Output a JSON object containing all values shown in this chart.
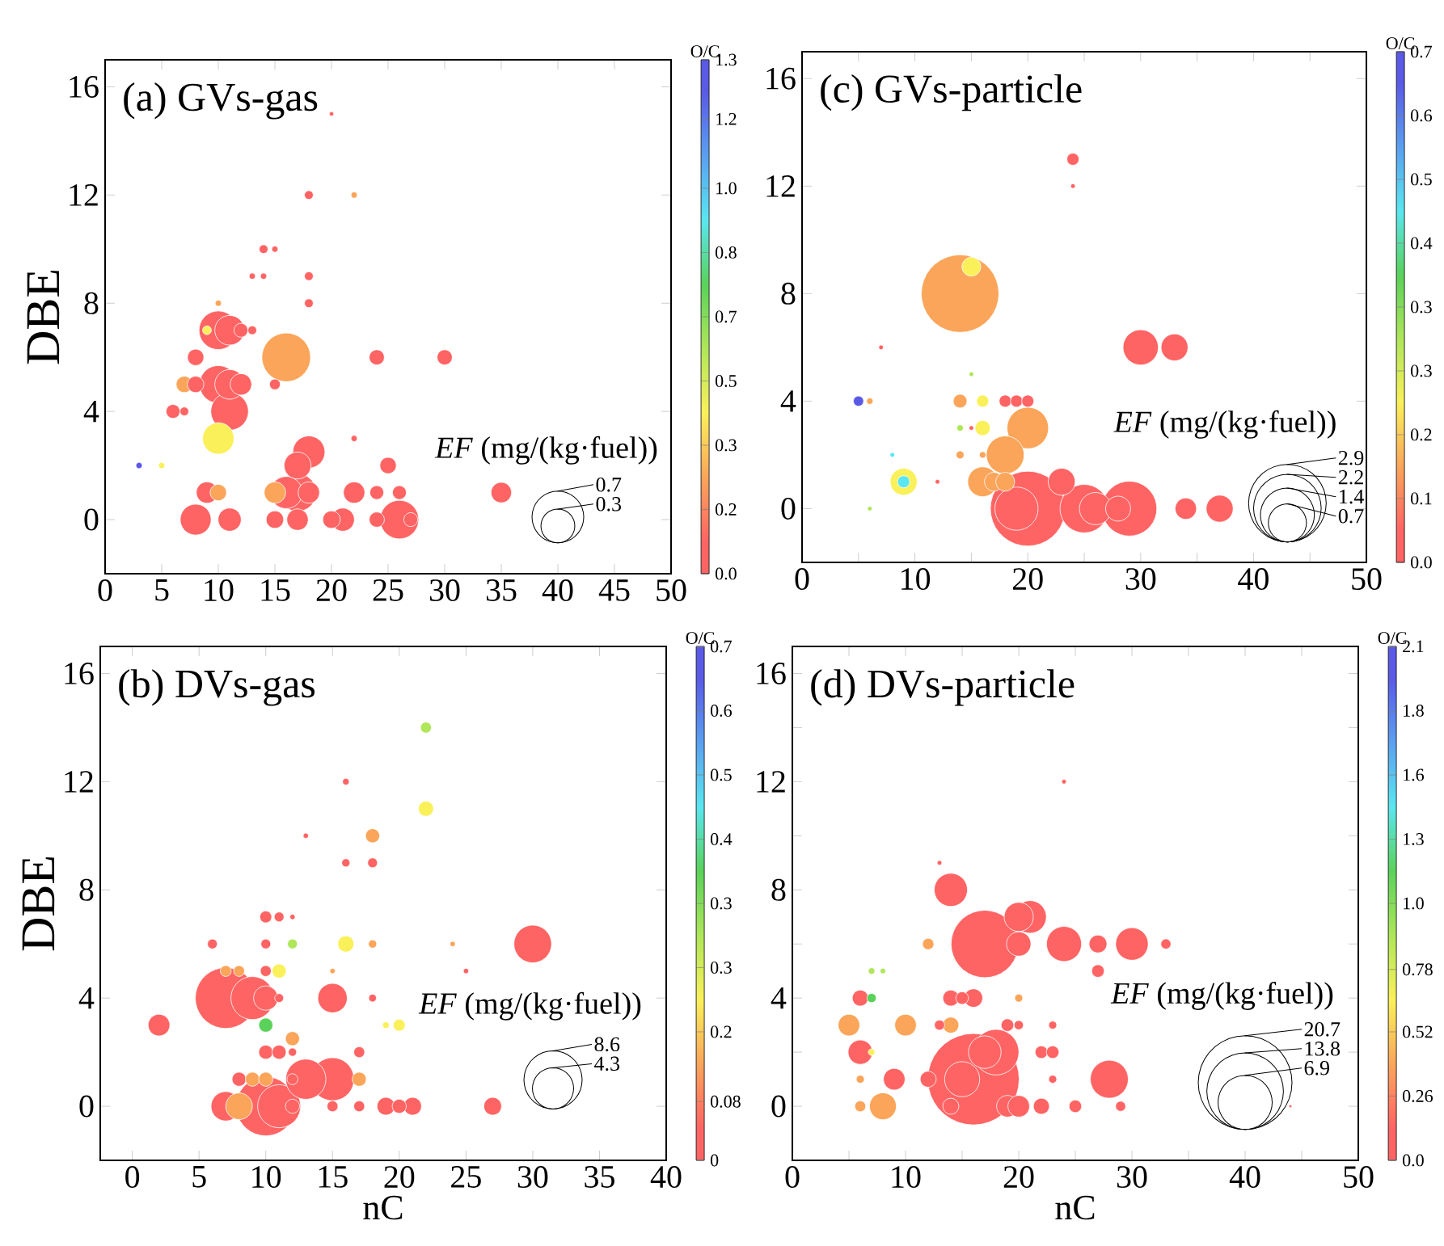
{
  "chart_data": [
    {
      "type": "bubble",
      "title": "(a) GVs-gas",
      "ylabel": "DBE",
      "legend_title": "*EF* (mg/(kg·fuel))",
      "clabel": "O/C",
      "x": [
        10,
        11,
        12,
        13,
        9,
        16,
        8,
        24,
        30,
        10,
        11,
        12,
        7,
        8,
        15,
        11,
        6,
        7,
        10,
        18,
        17,
        25,
        3,
        5,
        9,
        10,
        15,
        16,
        17,
        18,
        22,
        24,
        26,
        35,
        8,
        11,
        15,
        17,
        20,
        21,
        24,
        26,
        27,
        18,
        22,
        18,
        14,
        15,
        18,
        13,
        14,
        20,
        22,
        10
      ],
      "values": [
        7,
        7,
        7,
        7,
        7,
        6,
        6,
        6,
        6,
        5,
        5,
        5,
        5,
        5,
        5,
        4,
        4,
        4,
        3,
        2.5,
        2,
        2,
        2,
        2,
        1,
        1,
        1,
        1,
        1,
        1,
        1,
        1,
        1,
        1,
        0,
        0,
        0,
        0,
        0,
        0,
        0,
        0,
        0,
        12,
        12,
        9,
        10,
        10,
        8,
        9,
        9,
        15,
        3,
        8
      ],
      "sizes": [
        0.39,
        0.23,
        0.05,
        0.02,
        0.02,
        0.62,
        0.07,
        0.06,
        0.06,
        0.37,
        0.23,
        0.12,
        0.07,
        0.07,
        0.03,
        0.37,
        0.05,
        0.02,
        0.26,
        0.27,
        0.19,
        0.07,
        0.01,
        0.01,
        0.12,
        0.07,
        0.12,
        0.27,
        0.37,
        0.12,
        0.12,
        0.05,
        0.05,
        0.11,
        0.25,
        0.14,
        0.08,
        0.12,
        0.08,
        0.14,
        0.06,
        0.39,
        0.05,
        0.02,
        0.01,
        0.02,
        0.02,
        0.01,
        0.02,
        0.01,
        0.01,
        0.005,
        0.01,
        0.01
      ],
      "cvalues": [
        0.08,
        0.08,
        0.08,
        0.08,
        0.41,
        0.24,
        0.08,
        0.08,
        0.08,
        0.08,
        0.08,
        0.08,
        0.24,
        0.08,
        0.08,
        0.08,
        0.08,
        0.08,
        0.41,
        0.08,
        0.08,
        0.08,
        1.22,
        0.41,
        0.08,
        0.24,
        0.24,
        0.08,
        0.08,
        0.08,
        0.08,
        0.08,
        0.08,
        0.08,
        0.08,
        0.08,
        0.08,
        0.08,
        0.08,
        0.08,
        0.08,
        0.08,
        0.08,
        0.08,
        0.24,
        0.08,
        0.08,
        0.08,
        0.08,
        0.08,
        0.08,
        0.08,
        0.08,
        0.24
      ],
      "size_legend": [
        0.7,
        0.3
      ],
      "clim": [
        0,
        1.3
      ],
      "cticks": [
        {
          "value": 0,
          "label": "0.0"
        },
        {
          "value": 0.1625,
          "label": "0.2"
        },
        {
          "value": 0.325,
          "label": "0.3"
        },
        {
          "value": 0.4875,
          "label": "0.5"
        },
        {
          "value": 0.65,
          "label": "0.7"
        },
        {
          "value": 0.8125,
          "label": "0.8"
        },
        {
          "value": 0.975,
          "label": "1.0"
        },
        {
          "value": 1.15,
          "label": "1.2"
        },
        {
          "value": 1.3,
          "label": "1.3"
        }
      ],
      "xlim": [
        0,
        50
      ],
      "ylim": [
        -2,
        17
      ],
      "xticks": [
        0,
        5,
        10,
        15,
        20,
        25,
        30,
        35,
        40,
        45,
        50
      ],
      "yticks": [
        0,
        4,
        8,
        12,
        16
      ]
    },
    {
      "type": "bubble",
      "title": "(c) GVs-particle",
      "legend_title": "*EF* (mg/(kg·fuel))",
      "clabel": "O/C",
      "x": [
        14,
        15,
        24,
        24,
        30,
        33,
        7,
        15,
        5,
        6,
        14,
        16,
        18,
        19,
        20,
        20,
        16,
        14,
        15,
        18,
        14,
        16,
        8,
        9,
        9,
        16,
        17,
        18,
        23,
        12,
        20,
        19,
        25,
        26,
        29,
        28,
        34,
        37,
        6
      ],
      "values": [
        8,
        9,
        13,
        12,
        6,
        6,
        6,
        5,
        4,
        4,
        4,
        4,
        4,
        4,
        4,
        3,
        3,
        3,
        3,
        2,
        2,
        2,
        2,
        1,
        1,
        1,
        1,
        1,
        1,
        1,
        0,
        0,
        0,
        0,
        0,
        0,
        0,
        0,
        0
      ],
      "sizes": [
        2.9,
        0.17,
        0.07,
        0.01,
        0.6,
        0.35,
        0.01,
        0.01,
        0.05,
        0.02,
        0.09,
        0.07,
        0.07,
        0.07,
        0.07,
        0.83,
        0.11,
        0.02,
        0.01,
        0.69,
        0.03,
        0.02,
        0.01,
        0.07,
        0.35,
        0.43,
        0.17,
        0.17,
        0.35,
        0.01,
        2.7,
        0.9,
        1.13,
        0.5,
        1.45,
        0.3,
        0.22,
        0.35,
        0.01
      ],
      "cvalues": [
        0.13,
        0.22,
        0.04,
        0.04,
        0.04,
        0.04,
        0.04,
        0.31,
        0.66,
        0.13,
        0.13,
        0.22,
        0.04,
        0.04,
        0.04,
        0.13,
        0.22,
        0.31,
        0.04,
        0.13,
        0.13,
        0.13,
        0.48,
        0.48,
        0.22,
        0.13,
        0.13,
        0.13,
        0.04,
        0.04,
        0.04,
        0.04,
        0.04,
        0.04,
        0.04,
        0.04,
        0.04,
        0.04,
        0.31
      ],
      "size_legend": [
        2.9,
        2.2,
        1.4,
        0.7
      ],
      "clim": [
        0,
        0.7
      ],
      "cticks": [
        {
          "value": 0,
          "label": "0.0"
        },
        {
          "value": 0.0875,
          "label": "0.1"
        },
        {
          "value": 0.175,
          "label": "0.2"
        },
        {
          "value": 0.2625,
          "label": "0.3"
        },
        {
          "value": 0.35,
          "label": "0.3"
        },
        {
          "value": 0.4375,
          "label": "0.4"
        },
        {
          "value": 0.525,
          "label": "0.5"
        },
        {
          "value": 0.6125,
          "label": "0.6"
        },
        {
          "value": 0.7,
          "label": "0.7"
        }
      ],
      "xlim": [
        0,
        50
      ],
      "ylim": [
        -2,
        17
      ],
      "xticks": [
        0,
        {
          "value": 5,
          "label": null
        },
        10,
        {
          "value": 15,
          "label": null
        },
        20,
        {
          "value": 25,
          "label": null
        },
        30,
        {
          "value": 35,
          "label": null
        },
        40,
        {
          "value": 45,
          "label": null
        },
        50
      ],
      "yticks": [
        0,
        4,
        8,
        12,
        16
      ]
    },
    {
      "type": "bubble",
      "title": "(b) DVs-gas",
      "xlabel": "nC",
      "ylabel": "DBE",
      "legend_title": "*EF* (mg/(kg·fuel))",
      "clabel": "O/C",
      "x": [
        7,
        9,
        10,
        11,
        15,
        18,
        2,
        30,
        16,
        12,
        18,
        10,
        6,
        24,
        22,
        22,
        18,
        16,
        18,
        16,
        10,
        11,
        12,
        13,
        7,
        8,
        10,
        11,
        15,
        25,
        10,
        20,
        19,
        12,
        10,
        11,
        12,
        17,
        8,
        9,
        10,
        13,
        15,
        17,
        12,
        7,
        10,
        11,
        8,
        12,
        15,
        17,
        19,
        20,
        21,
        27
      ],
      "values": [
        4,
        4,
        4,
        4,
        4,
        4,
        3,
        6,
        6,
        6,
        6,
        6,
        6,
        6,
        14,
        11,
        10,
        9,
        9,
        12,
        7,
        7,
        7,
        10,
        5,
        5,
        5,
        5,
        5,
        5,
        3,
        3,
        3,
        2.5,
        2,
        2,
        2,
        2,
        1,
        1,
        1,
        1,
        1,
        1,
        1,
        0,
        0,
        0,
        0,
        0,
        0,
        0,
        0,
        0,
        0,
        0
      ],
      "sizes": [
        9.4,
        4.7,
        1.5,
        0.2,
        2.2,
        0.15,
        1.2,
        3.6,
        0.66,
        0.24,
        0.17,
        0.24,
        0.24,
        0.07,
        0.3,
        0.58,
        0.5,
        0.17,
        0.24,
        0.11,
        0.36,
        0.24,
        0.07,
        0.07,
        0.3,
        0.3,
        0.3,
        0.5,
        0.07,
        0.07,
        0.5,
        0.36,
        0.11,
        0.5,
        0.5,
        0.5,
        0.17,
        0.3,
        0.5,
        0.5,
        0.5,
        4.1,
        4.7,
        0.5,
        0.3,
        2.2,
        8.9,
        4.7,
        1.8,
        0.5,
        0.3,
        0.3,
        0.8,
        0.5,
        0.8,
        0.8
      ],
      "cvalues": [
        0.04,
        0.04,
        0.04,
        0.04,
        0.04,
        0.04,
        0.04,
        0.04,
        0.22,
        0.31,
        0.13,
        0.04,
        0.04,
        0.13,
        0.31,
        0.22,
        0.13,
        0.04,
        0.04,
        0.04,
        0.04,
        0.04,
        0.04,
        0.04,
        0.13,
        0.13,
        0.04,
        0.22,
        0.13,
        0.04,
        0.39,
        0.22,
        0.22,
        0.13,
        0.04,
        0.04,
        0.04,
        0.04,
        0.04,
        0.13,
        0.13,
        0.04,
        0.04,
        0.13,
        0.04,
        0.04,
        0.04,
        0.04,
        0.13,
        0.04,
        0.04,
        0.04,
        0.04,
        0.04,
        0.04,
        0.04
      ],
      "size_legend": [
        8.6,
        4.3
      ],
      "clim": [
        0,
        0.7
      ],
      "cticks": [
        0,
        {
          "value": 0.08,
          "label": "0.08"
        },
        {
          "value": 0.175,
          "label": "0.2"
        },
        {
          "value": 0.2625,
          "label": "0.3"
        },
        {
          "value": 0.35,
          "label": "0.3"
        },
        {
          "value": 0.4375,
          "label": "0.4"
        },
        {
          "value": 0.525,
          "label": "0.5"
        },
        {
          "value": 0.6125,
          "label": "0.6"
        },
        {
          "value": 0.7,
          "label": "0.7"
        }
      ],
      "xlim": [
        -2.4,
        40
      ],
      "ylim": [
        -2,
        17
      ],
      "xticks": [
        0,
        5,
        10,
        15,
        20,
        25,
        30,
        35,
        40
      ],
      "yticks": [
        0,
        4,
        8,
        12,
        16
      ]
    },
    {
      "type": "bubble",
      "title": "(d) DVs-particle",
      "xlabel": "nC",
      "legend_title": "*EF* (mg/(kg·fuel))",
      "clabel": "O/C",
      "x": [
        16,
        17,
        18,
        17,
        15,
        14,
        20,
        21,
        20,
        24,
        30,
        27,
        33,
        27,
        28,
        5,
        10,
        14,
        13,
        19,
        20,
        23,
        6,
        7,
        22,
        23,
        6,
        7,
        14,
        15,
        16,
        20,
        12,
        7,
        8,
        9,
        6,
        12,
        23,
        8,
        6,
        14,
        19,
        20,
        22,
        25,
        29,
        44,
        13,
        24
      ],
      "values": [
        1,
        6,
        2,
        2,
        1,
        8,
        7,
        7,
        6,
        6,
        6,
        6,
        6,
        5,
        1,
        3,
        3,
        3,
        3,
        3,
        3,
        3,
        2,
        2,
        2,
        2,
        4,
        4,
        4,
        4,
        4,
        4,
        6,
        5,
        5,
        1,
        1,
        1,
        1,
        0,
        0,
        0,
        0,
        0,
        0,
        0,
        0,
        0,
        9,
        12
      ],
      "sizes": [
        19.7,
        10.7,
        4.9,
        2.5,
        2.9,
        2.6,
        2.0,
        2.5,
        1.4,
        2.9,
        2.5,
        0.75,
        0.24,
        0.37,
        3.4,
        1.1,
        1.1,
        0.6,
        0.24,
        0.37,
        0.2,
        0.15,
        1.4,
        0.1,
        0.37,
        0.37,
        0.6,
        0.2,
        0.6,
        0.37,
        0.8,
        0.15,
        0.3,
        0.1,
        0.07,
        1.1,
        0.15,
        0.6,
        0.15,
        1.7,
        0.28,
        0.6,
        1.1,
        1.1,
        0.6,
        0.37,
        0.24,
        0.02,
        0.05,
        0.05
      ],
      "cvalues": [
        0.13,
        0.13,
        0.13,
        0.13,
        0.13,
        0.13,
        0.13,
        0.13,
        0.13,
        0.13,
        0.13,
        0.13,
        0.13,
        0.13,
        0.13,
        0.39,
        0.39,
        0.39,
        0.13,
        0.13,
        0.13,
        0.13,
        0.13,
        0.66,
        0.13,
        0.13,
        0.13,
        1.18,
        0.13,
        0.13,
        0.13,
        0.39,
        0.39,
        0.92,
        0.92,
        0.13,
        0.39,
        0.13,
        0.13,
        0.39,
        0.39,
        0.13,
        0.13,
        0.13,
        0.13,
        0.13,
        0.13,
        0.13,
        0.13,
        0.13
      ],
      "size_legend": [
        20.7,
        13.8,
        6.9
      ],
      "clim": [
        0,
        2.1
      ],
      "cticks": [
        {
          "value": 0,
          "label": "0.0"
        },
        {
          "value": 0.2625,
          "label": "0.26"
        },
        {
          "value": 0.525,
          "label": "0.52"
        },
        {
          "value": 0.78,
          "label": "0.78"
        },
        {
          "value": 1.05,
          "label": "1.0"
        },
        {
          "value": 1.3125,
          "label": "1.3"
        },
        {
          "value": 1.575,
          "label": "1.6"
        },
        {
          "value": 1.8375,
          "label": "1.8"
        },
        {
          "value": 2.1,
          "label": "2.1"
        }
      ],
      "xlim": [
        0,
        50
      ],
      "ylim": [
        -2,
        17
      ],
      "xticks": [
        0,
        {
          "value": 5,
          "label": null
        },
        10,
        {
          "value": 15,
          "label": null
        },
        20,
        {
          "value": 25,
          "label": null
        },
        30,
        {
          "value": 35,
          "label": null
        },
        40,
        {
          "value": 45,
          "label": null
        },
        50
      ],
      "yticks": [
        0,
        {
          "value": 2,
          "label": null
        },
        4,
        {
          "value": 6,
          "label": null
        },
        8,
        {
          "value": 10,
          "label": null
        },
        12,
        {
          "value": 14,
          "label": null
        },
        16
      ]
    }
  ]
}
